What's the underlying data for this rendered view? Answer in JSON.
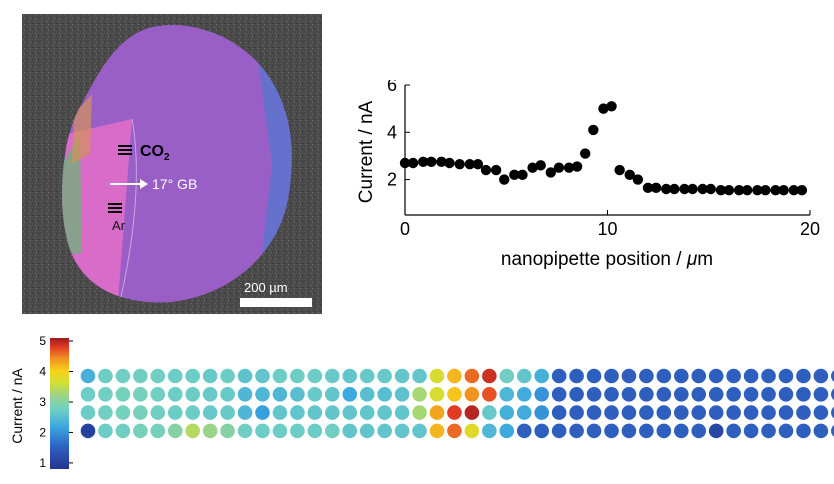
{
  "micrograph": {
    "labels": {
      "co2": "CO",
      "co2_sub": "2",
      "gb": "17° GB",
      "ar": "Ar"
    },
    "scalebar_label": "200 µm",
    "colors": {
      "background": "#4a4a4a",
      "main_grain": "#9a5fc7",
      "pink_grain": "#d96bc9",
      "edge_blue": "#4f79cf",
      "edge_green": "#66b872",
      "edge_orange": "#d3935b"
    }
  },
  "chart_data": [
    {
      "type": "scatter",
      "xlabel_prefix": "nanopipette position / ",
      "xlabel_mu": "μ",
      "xlabel_unit": "m",
      "ylabel": "Current / nA",
      "xlim": [
        0,
        20
      ],
      "ylim": [
        0.5,
        6
      ],
      "xticks": [
        0,
        10,
        20
      ],
      "yticks": [
        2,
        4,
        6
      ],
      "marker_color": "#000000",
      "x": [
        0,
        0.4,
        0.9,
        1.3,
        1.8,
        2.2,
        2.7,
        3.2,
        3.6,
        4.0,
        4.5,
        4.9,
        5.4,
        5.8,
        6.3,
        6.7,
        7.2,
        7.6,
        8.1,
        8.5,
        8.9,
        9.3,
        9.8,
        10.2,
        10.6,
        11.1,
        11.5,
        12.0,
        12.4,
        12.9,
        13.3,
        13.8,
        14.2,
        14.7,
        15.1,
        15.6,
        16.0,
        16.5,
        16.9,
        17.4,
        17.8,
        18.3,
        18.7,
        19.2,
        19.6
      ],
      "y": [
        2.7,
        2.7,
        2.75,
        2.75,
        2.75,
        2.7,
        2.65,
        2.65,
        2.65,
        2.4,
        2.4,
        2.0,
        2.2,
        2.2,
        2.5,
        2.6,
        2.3,
        2.5,
        2.5,
        2.55,
        3.1,
        4.1,
        5.0,
        5.1,
        2.4,
        2.2,
        2.0,
        1.65,
        1.65,
        1.6,
        1.6,
        1.6,
        1.6,
        1.6,
        1.6,
        1.55,
        1.55,
        1.55,
        1.55,
        1.55,
        1.55,
        1.55,
        1.55,
        1.55,
        1.55
      ]
    },
    {
      "type": "heatmap",
      "colorbar_label": "Current / nA",
      "colorbar_ticks": [
        1,
        2,
        3,
        4,
        5
      ],
      "range": [
        0.8,
        5.1
      ],
      "rows": [
        [
          2.3,
          2.7,
          2.75,
          2.75,
          2.75,
          2.7,
          2.7,
          2.65,
          2.7,
          2.55,
          2.6,
          2.7,
          2.7,
          2.7,
          2.65,
          2.6,
          2.65,
          2.65,
          2.6,
          2.6,
          3.7,
          4.2,
          4.6,
          4.9,
          2.75,
          2.6,
          2.3,
          1.5,
          1.5,
          1.5,
          1.5,
          1.5,
          1.5,
          1.5,
          1.5,
          1.5,
          1.5,
          1.5,
          1.5,
          1.5,
          1.5,
          1.5,
          1.5,
          1.5,
          1.5
        ],
        [
          2.7,
          2.75,
          2.8,
          2.8,
          2.75,
          2.7,
          2.7,
          2.65,
          2.65,
          2.4,
          2.4,
          2.4,
          2.5,
          2.65,
          2.6,
          2.2,
          2.5,
          2.5,
          2.55,
          3.3,
          3.7,
          4.1,
          4.4,
          4.7,
          2.4,
          2.25,
          2.0,
          1.5,
          1.5,
          1.5,
          1.5,
          1.5,
          1.5,
          1.5,
          1.5,
          1.5,
          1.5,
          1.5,
          1.5,
          1.5,
          1.5,
          1.5,
          1.5,
          1.5,
          1.5
        ],
        [
          2.7,
          2.75,
          2.8,
          2.8,
          2.75,
          2.7,
          2.7,
          2.65,
          2.65,
          2.4,
          2.1,
          2.6,
          2.6,
          2.6,
          2.6,
          2.6,
          2.6,
          2.6,
          2.6,
          3.3,
          4.3,
          4.8,
          5.0,
          2.65,
          2.3,
          2.25,
          2.0,
          1.5,
          1.5,
          1.5,
          1.5,
          1.5,
          1.5,
          1.5,
          1.5,
          1.5,
          1.5,
          1.5,
          1.5,
          1.5,
          1.5,
          1.5,
          1.5,
          1.5,
          1.5
        ],
        [
          1.0,
          2.7,
          2.75,
          2.8,
          2.8,
          3.0,
          3.4,
          3.2,
          3.0,
          2.75,
          2.7,
          2.7,
          2.7,
          2.7,
          2.75,
          2.6,
          2.6,
          2.6,
          2.6,
          2.6,
          4.2,
          4.6,
          3.8,
          2.4,
          2.2,
          1.5,
          1.5,
          1.5,
          1.5,
          1.5,
          1.5,
          1.5,
          1.5,
          1.5,
          1.5,
          1.5,
          1.1,
          1.5,
          1.5,
          1.5,
          1.5,
          1.5,
          1.5,
          1.5,
          1.5
        ]
      ]
    }
  ]
}
